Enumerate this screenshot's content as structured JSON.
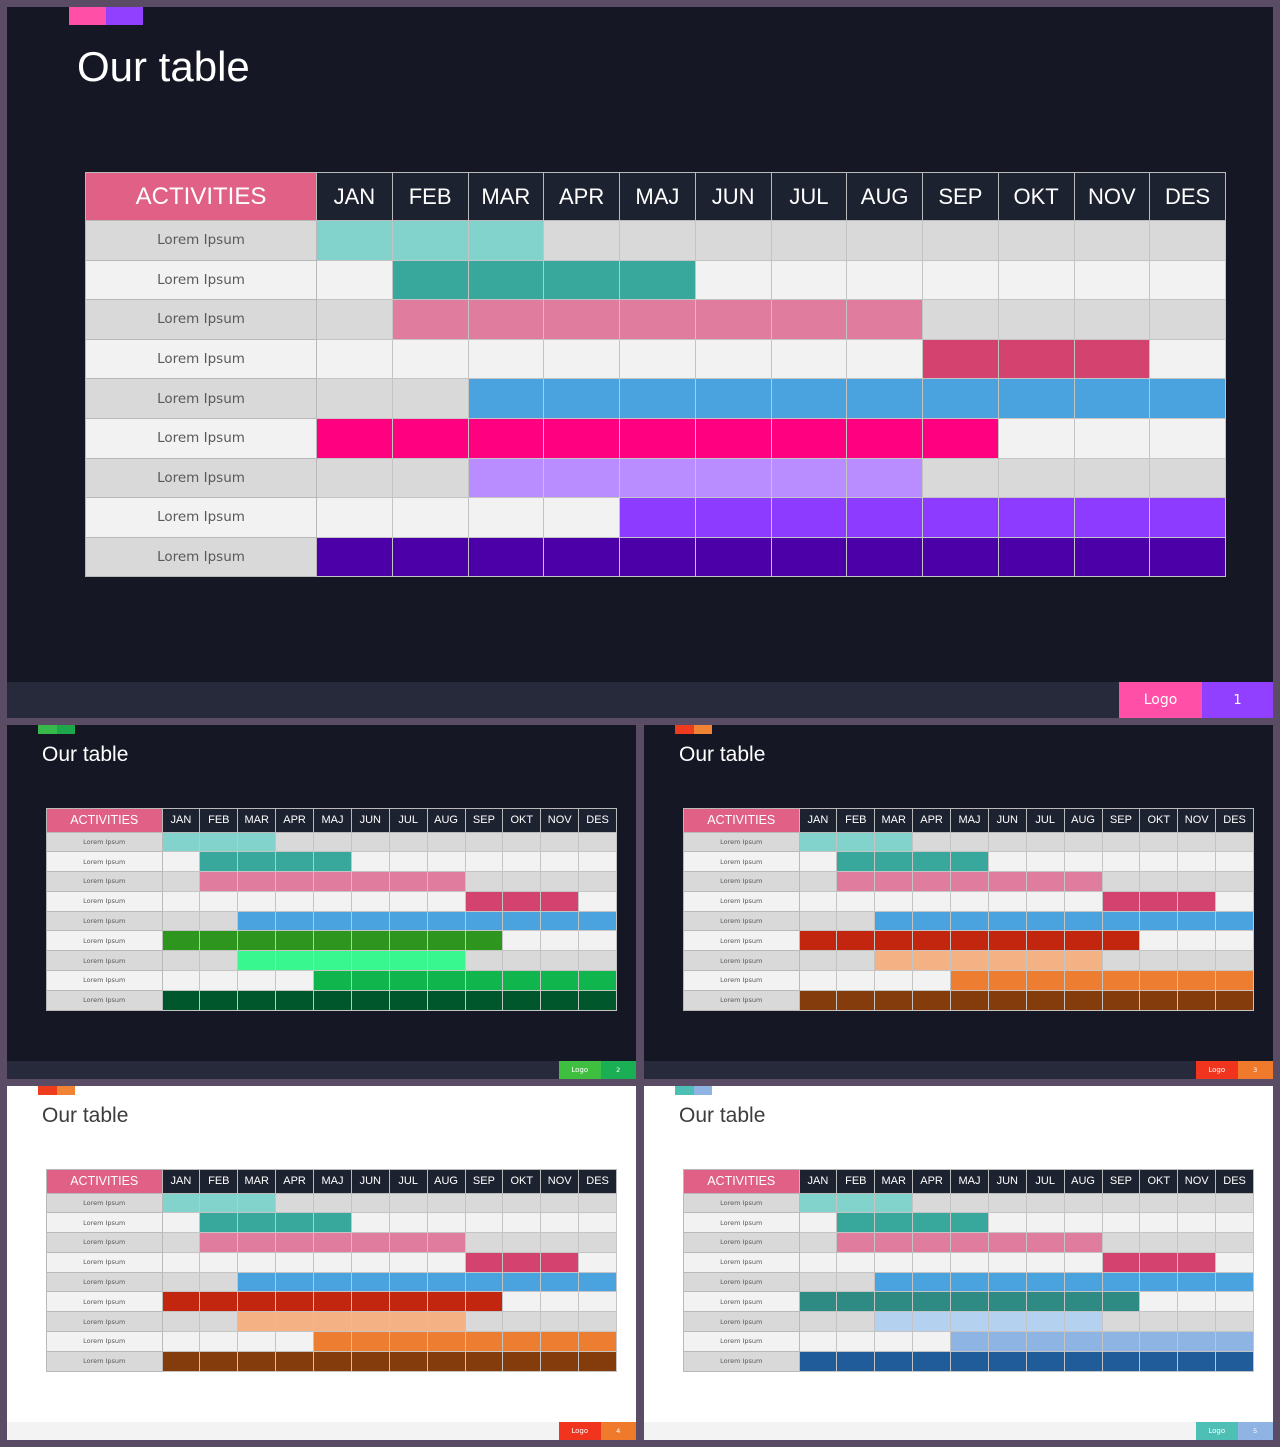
{
  "months": [
    "JAN",
    "FEB",
    "MAR",
    "APR",
    "MAJ",
    "JUN",
    "JUL",
    "AUG",
    "SEP",
    "OKT",
    "NOV",
    "DES"
  ],
  "activities_header": "ACTIVITIES",
  "row_label": "Lorem Ipsum",
  "logo_label": "Logo",
  "slides": [
    {
      "title": "Our table",
      "theme": "dark",
      "accent_colors": [
        "#ff4fa7",
        "#9240ff"
      ],
      "footer": {
        "logo": "Logo",
        "number": "1",
        "logo_color": "#ff4fa7",
        "number_color": "#9240ff"
      },
      "bars": [
        {
          "start": "JAN",
          "end": "MAR",
          "color": "#82d3cb"
        },
        {
          "start": "FEB",
          "end": "MAJ",
          "color": "#38a89d"
        },
        {
          "start": "FEB",
          "end": "AUG",
          "color": "#e07c9d"
        },
        {
          "start": "SEP",
          "end": "NOV",
          "color": "#d4436f"
        },
        {
          "start": "MAR",
          "end": "DES",
          "color": "#4aa3df"
        },
        {
          "start": "JAN",
          "end": "SEP",
          "color": "#ff0080"
        },
        {
          "start": "MAR",
          "end": "AUG",
          "color": "#b98cff"
        },
        {
          "start": "MAJ",
          "end": "DES",
          "color": "#8d3cff"
        },
        {
          "start": "JAN",
          "end": "DES",
          "color": "#4b00a8"
        }
      ]
    },
    {
      "title": "Our table",
      "theme": "dark",
      "accent_colors": [
        "#37b84a",
        "#1ea64a"
      ],
      "footer": {
        "logo": "Logo",
        "number": "2",
        "logo_color": "#3fbf3f",
        "number_color": "#1aaf55"
      },
      "bars": [
        {
          "start": "JAN",
          "end": "MAR",
          "color": "#82d3cb"
        },
        {
          "start": "FEB",
          "end": "MAJ",
          "color": "#38a89d"
        },
        {
          "start": "FEB",
          "end": "AUG",
          "color": "#e07c9d"
        },
        {
          "start": "SEP",
          "end": "NOV",
          "color": "#d4436f"
        },
        {
          "start": "MAR",
          "end": "DES",
          "color": "#4aa3df"
        },
        {
          "start": "JAN",
          "end": "SEP",
          "color": "#2e961f"
        },
        {
          "start": "MAR",
          "end": "AUG",
          "color": "#38f78e"
        },
        {
          "start": "MAJ",
          "end": "DES",
          "color": "#10b64d"
        },
        {
          "start": "JAN",
          "end": "DES",
          "color": "#00572b"
        }
      ]
    },
    {
      "title": "Our table",
      "theme": "dark",
      "accent_colors": [
        "#f03c1e",
        "#f08434"
      ],
      "footer": {
        "logo": "Logo",
        "number": "3",
        "logo_color": "#f0341e",
        "number_color": "#f07a2c"
      },
      "bars": [
        {
          "start": "JAN",
          "end": "MAR",
          "color": "#82d3cb"
        },
        {
          "start": "FEB",
          "end": "MAJ",
          "color": "#38a89d"
        },
        {
          "start": "FEB",
          "end": "AUG",
          "color": "#e07c9d"
        },
        {
          "start": "SEP",
          "end": "NOV",
          "color": "#d4436f"
        },
        {
          "start": "MAR",
          "end": "DES",
          "color": "#4aa3df"
        },
        {
          "start": "JAN",
          "end": "SEP",
          "color": "#c2260e"
        },
        {
          "start": "MAR",
          "end": "AUG",
          "color": "#f4b184"
        },
        {
          "start": "MAJ",
          "end": "DES",
          "color": "#ed7d31"
        },
        {
          "start": "JAN",
          "end": "DES",
          "color": "#843c0c"
        }
      ]
    },
    {
      "title": "Our table",
      "theme": "light",
      "accent_colors": [
        "#f03c1e",
        "#f08434"
      ],
      "footer": {
        "logo": "Logo",
        "number": "4",
        "logo_color": "#f0341e",
        "number_color": "#f07a2c"
      },
      "bars": [
        {
          "start": "JAN",
          "end": "MAR",
          "color": "#82d3cb"
        },
        {
          "start": "FEB",
          "end": "MAJ",
          "color": "#38a89d"
        },
        {
          "start": "FEB",
          "end": "AUG",
          "color": "#e07c9d"
        },
        {
          "start": "SEP",
          "end": "NOV",
          "color": "#d4436f"
        },
        {
          "start": "MAR",
          "end": "DES",
          "color": "#4aa3df"
        },
        {
          "start": "JAN",
          "end": "SEP",
          "color": "#c2260e"
        },
        {
          "start": "MAR",
          "end": "AUG",
          "color": "#f4b184"
        },
        {
          "start": "MAJ",
          "end": "DES",
          "color": "#ed7d31"
        },
        {
          "start": "JAN",
          "end": "DES",
          "color": "#843c0c"
        }
      ]
    },
    {
      "title": "Our table",
      "theme": "light",
      "accent_colors": [
        "#4dbfb4",
        "#8fb4e3"
      ],
      "footer": {
        "logo": "Logo",
        "number": "5",
        "logo_color": "#4dbfb4",
        "number_color": "#8fb4e3"
      },
      "bars": [
        {
          "start": "JAN",
          "end": "MAR",
          "color": "#82d3cb"
        },
        {
          "start": "FEB",
          "end": "MAJ",
          "color": "#38a89d"
        },
        {
          "start": "FEB",
          "end": "AUG",
          "color": "#e07c9d"
        },
        {
          "start": "SEP",
          "end": "NOV",
          "color": "#d4436f"
        },
        {
          "start": "MAR",
          "end": "DES",
          "color": "#4aa3df"
        },
        {
          "start": "JAN",
          "end": "SEP",
          "color": "#2e8b84"
        },
        {
          "start": "MAR",
          "end": "AUG",
          "color": "#b4d2f0"
        },
        {
          "start": "MAJ",
          "end": "DES",
          "color": "#8db4e2"
        },
        {
          "start": "JAN",
          "end": "DES",
          "color": "#1f5c99"
        }
      ]
    }
  ]
}
